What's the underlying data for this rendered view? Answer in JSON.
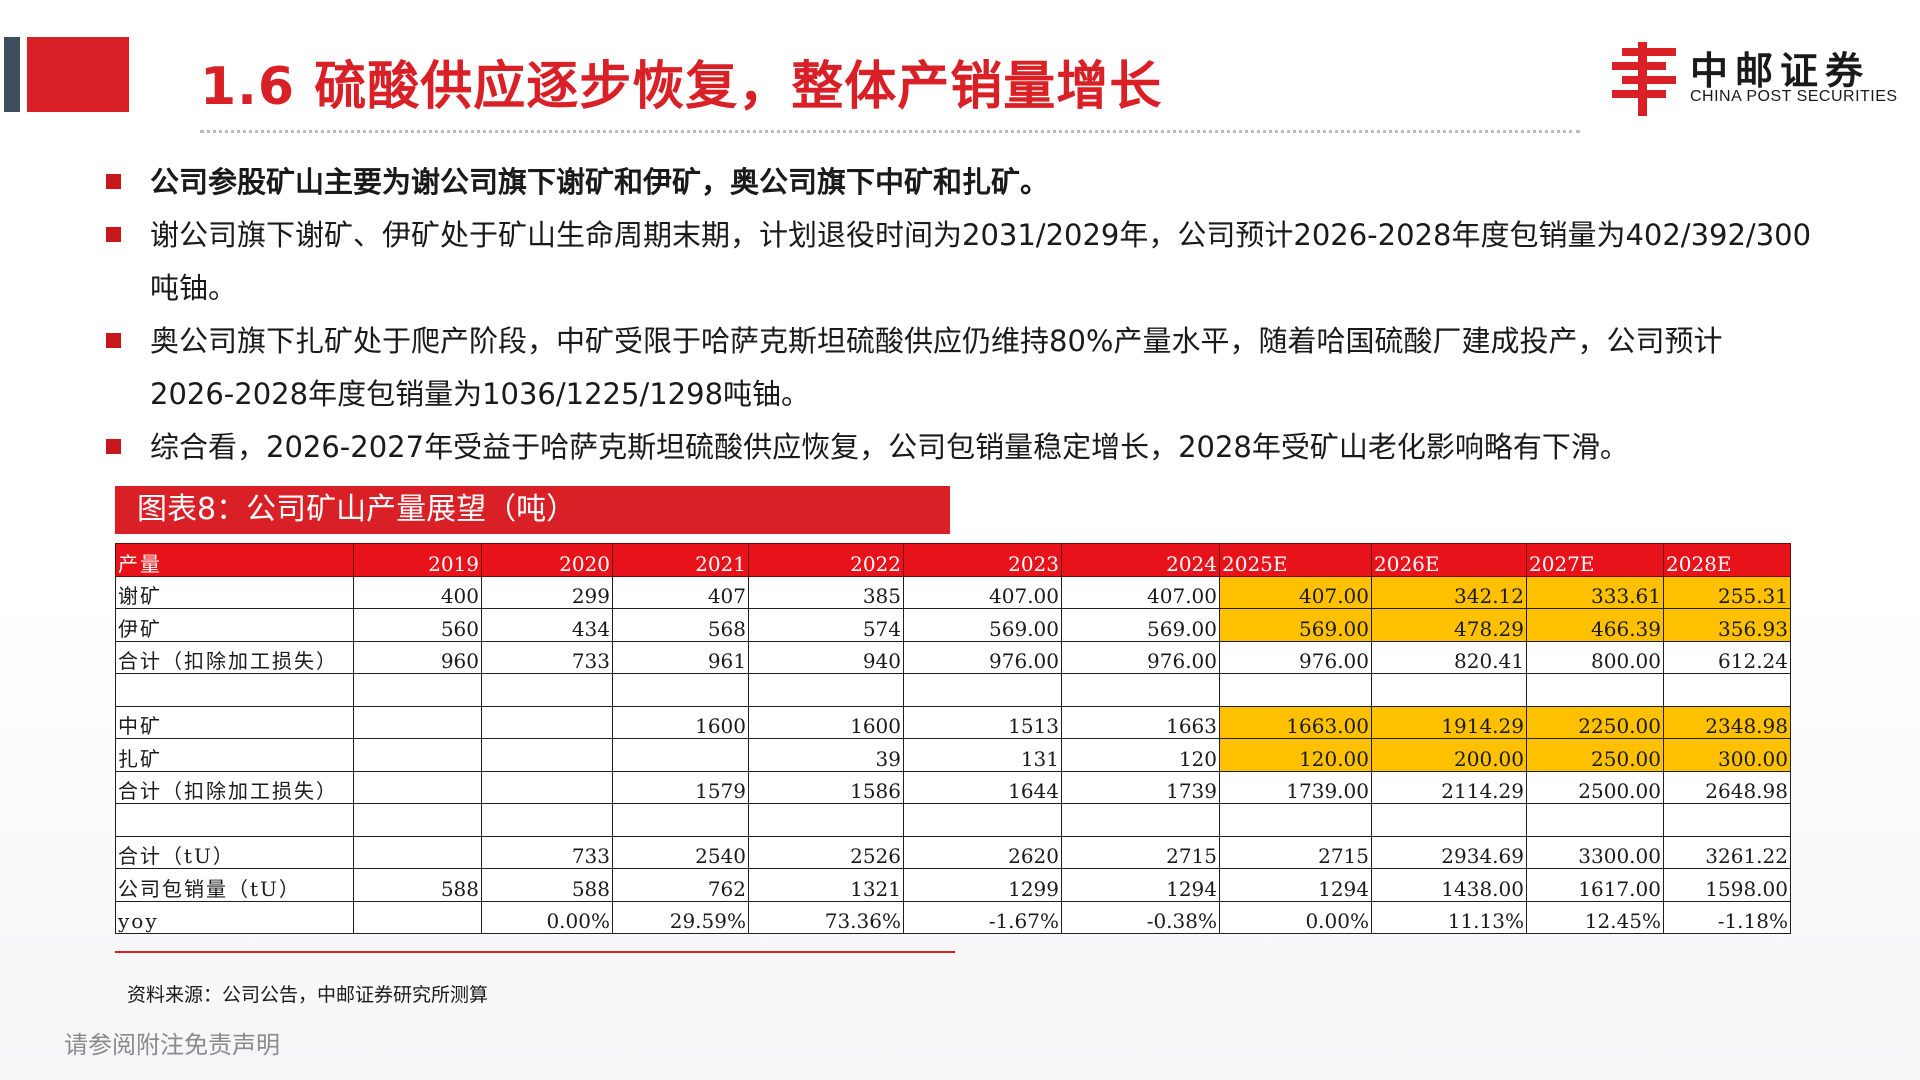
{
  "slide": {
    "title": "1.6 硫酸供应逐步恢复，整体产销量增长",
    "brand_color": "#d92027",
    "accent_gray": "#3e4d5c"
  },
  "logo": {
    "cn": "中邮证券",
    "en": "CHINA POST SECURITIES",
    "icon": "china-post-logo-icon"
  },
  "bullets": [
    {
      "text": "公司参股矿山主要为谢公司旗下谢矿和伊矿，奥公司旗下中矿和扎矿。",
      "bold": true
    },
    {
      "line1": "谢公司旗下谢矿、伊矿处于矿山生命周期末期，计划退役时间为2031/2029年，公司预计2026-2028年度包销量为402/392/300",
      "line2": "吨铀。"
    },
    {
      "line1": "奥公司旗下扎矿处于爬产阶段，中矿受限于哈萨克斯坦硫酸供应仍维持80%产量水平，随着哈国硫酸厂建成投产，公司预计",
      "line2": "2026-2028年度包销量为1036/1225/1298吨铀。"
    },
    {
      "text": "综合看，2026-2027年受益于哈萨克斯坦硫酸供应恢复，公司包销量稳定增长，2028年受矿山老化影响略有下滑。"
    }
  ],
  "chart": {
    "title": "图表8：公司矿山产量展望（吨）",
    "header_color": "#e8121a",
    "highlight_color": "#ffc000"
  },
  "table": {
    "header": [
      "产量",
      "2019",
      "2020",
      "2021",
      "2022",
      "2023",
      "2024",
      "2025E",
      "2026E",
      "2027E",
      "2028E"
    ],
    "rows": [
      {
        "cells": [
          "谢矿",
          "400",
          "299",
          "407",
          "385",
          "407.00",
          "407.00",
          "407.00",
          "342.12",
          "333.61",
          "255.31"
        ],
        "hl": true
      },
      {
        "cells": [
          "伊矿",
          "560",
          "434",
          "568",
          "574",
          "569.00",
          "569.00",
          "569.00",
          "478.29",
          "466.39",
          "356.93"
        ],
        "hl": true
      },
      {
        "cells": [
          "合计（扣除加工损失）",
          "960",
          "733",
          "961",
          "940",
          "976.00",
          "976.00",
          "976.00",
          "820.41",
          "800.00",
          "612.24"
        ],
        "hl": false
      },
      {
        "cells": [
          "",
          "",
          "",
          "",
          "",
          "",
          "",
          "",
          "",
          "",
          ""
        ],
        "hl": false
      },
      {
        "cells": [
          "中矿",
          "",
          "",
          "1600",
          "1600",
          "1513",
          "1663",
          "1663.00",
          "1914.29",
          "2250.00",
          "2348.98"
        ],
        "hl": true
      },
      {
        "cells": [
          "扎矿",
          "",
          "",
          "",
          "39",
          "131",
          "120",
          "120.00",
          "200.00",
          "250.00",
          "300.00"
        ],
        "hl": true
      },
      {
        "cells": [
          "合计（扣除加工损失）",
          "",
          "",
          "1579",
          "1586",
          "1644",
          "1739",
          "1739.00",
          "2114.29",
          "2500.00",
          "2648.98"
        ],
        "hl": false
      },
      {
        "cells": [
          "",
          "",
          "",
          "",
          "",
          "",
          "",
          "",
          "",
          "",
          ""
        ],
        "hl": false
      },
      {
        "cells": [
          "合计（tU）",
          "",
          "733",
          "2540",
          "2526",
          "2620",
          "2715",
          "2715",
          "2934.69",
          "3300.00",
          "3261.22"
        ],
        "hl": false
      },
      {
        "cells": [
          "公司包销量（tU）",
          "588",
          "588",
          "762",
          "1321",
          "1299",
          "1294",
          "1294",
          "1438.00",
          "1617.00",
          "1598.00"
        ],
        "hl": false
      },
      {
        "cells": [
          "yoy",
          "",
          "0.00%",
          "29.59%",
          "73.36%",
          "-1.67%",
          "-0.38%",
          "0.00%",
          "11.13%",
          "12.45%",
          "-1.18%"
        ],
        "hl": false
      }
    ]
  },
  "source": "资料来源：公司公告，中邮证券研究所测算",
  "footer": "请参阅附注免责声明"
}
